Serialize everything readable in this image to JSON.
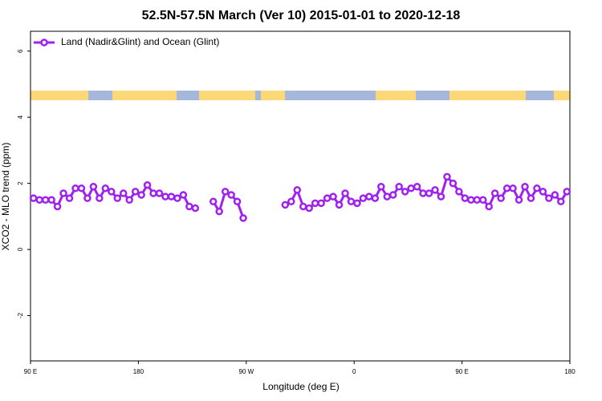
{
  "chart_data": {
    "type": "line",
    "title": "52.5N-57.5N March (Ver 10)   2015-01-01 to 2020-12-18",
    "x_label": "Longitude (deg E)",
    "y_label": "XCO2 - MLO trend (ppm)",
    "x": [
      92.5,
      97.5,
      102.5,
      107.5,
      112.5,
      117.5,
      122.5,
      127.5,
      132.5,
      137.5,
      142.5,
      147.5,
      152.5,
      157.5,
      162.5,
      167.5,
      172.5,
      177.5,
      182.5,
      187.5,
      192.5,
      197.5,
      202.5,
      207.5,
      212.5,
      217.5,
      222.5,
      227.5,
      232.5,
      237.5,
      242.5,
      247.5,
      252.5,
      257.5,
      262.5,
      267.5,
      272.5,
      277.5,
      282.5,
      287.5,
      292.5,
      297.5,
      302.5,
      307.5,
      312.5,
      317.5,
      322.5,
      327.5,
      332.5,
      337.5,
      342.5,
      347.5,
      352.5,
      357.5,
      362.5,
      367.5,
      372.5,
      377.5,
      382.5,
      387.5,
      392.5,
      397.5,
      402.5,
      407.5,
      412.5,
      417.5,
      422.5,
      427.5,
      432.5,
      437.5,
      442.5,
      447.5,
      452.5,
      457.5,
      462.5,
      467.5,
      472.5,
      477.5,
      482.5,
      487.5,
      492.5,
      497.5,
      502.5,
      507.5,
      512.5,
      517.5,
      522.5,
      527.5,
      532.5,
      537.5
    ],
    "series": [
      {
        "name": "Land (Nadir&Glint) and Ocean (Glint)",
        "color": "#a020f0",
        "values": [
          1.55,
          1.5,
          1.5,
          1.5,
          1.3,
          1.7,
          1.55,
          1.85,
          1.85,
          1.55,
          1.9,
          1.55,
          1.85,
          1.75,
          1.55,
          1.7,
          1.5,
          1.75,
          1.65,
          1.95,
          1.7,
          1.7,
          1.6,
          1.6,
          1.55,
          1.65,
          1.3,
          1.25,
          null,
          null,
          1.45,
          1.15,
          1.75,
          1.65,
          1.45,
          0.95,
          null,
          null,
          null,
          null,
          null,
          null,
          1.35,
          1.45,
          1.8,
          1.3,
          1.25,
          1.4,
          1.4,
          1.55,
          1.6,
          1.35,
          1.7,
          1.45,
          1.4,
          1.55,
          1.6,
          1.55,
          1.9,
          1.6,
          1.65,
          1.9,
          1.75,
          1.85,
          1.9,
          1.7,
          1.7,
          1.8,
          1.6,
          2.2,
          2.0,
          1.75,
          1.55,
          1.5,
          1.5,
          1.5,
          1.3,
          1.7,
          1.55,
          1.85,
          1.85,
          1.5,
          1.9,
          1.55,
          1.85,
          1.75,
          1.55,
          1.65,
          1.45,
          1.75
        ]
      }
    ],
    "xlim": [
      90,
      540
    ],
    "xticks": [
      {
        "value": 90,
        "label": "90 E"
      },
      180,
      {
        "value": 270,
        "label": "90 W"
      },
      {
        "value": 360,
        "label": "0"
      },
      {
        "value": 450,
        "label": "90 E"
      },
      {
        "value": 540,
        "label": "180"
      }
    ],
    "ylim": [
      -3.37,
      6.6
    ],
    "yticks": [
      -2,
      0,
      2,
      4,
      6
    ],
    "legend": "top-left"
  }
}
